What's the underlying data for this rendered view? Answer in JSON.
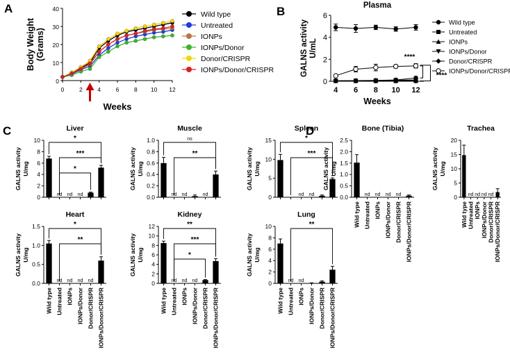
{
  "figure": {
    "colors": {
      "black": "#000000",
      "arrow": "#c40000"
    }
  },
  "chart_data": [
    {
      "id": "A",
      "type": "line",
      "panel_label": "A",
      "xlabel": "Weeks",
      "ylabel": "Body Weight (Grams)",
      "title": "",
      "xlim": [
        0,
        12
      ],
      "ylim": [
        0,
        40
      ],
      "x": [
        0,
        1,
        2,
        3,
        4,
        5,
        6,
        7,
        8,
        9,
        10,
        11,
        12
      ],
      "x_ticks": [
        0,
        2,
        4,
        6,
        8,
        10,
        12
      ],
      "y_ticks": [
        0,
        10,
        20,
        30,
        40
      ],
      "annotations": [
        {
          "type": "arrow",
          "color": "#c40000",
          "at_x": 3
        }
      ],
      "legend": "right",
      "series": [
        {
          "name": "Wild type",
          "color": "#000000",
          "values": [
            2,
            4,
            7,
            10,
            18,
            22,
            25,
            27,
            28,
            29,
            30,
            31,
            32
          ]
        },
        {
          "name": "Untreated",
          "color": "#1f3be0",
          "values": [
            2,
            3.5,
            6,
            8,
            14,
            18,
            21,
            23,
            24.5,
            25.5,
            26.5,
            27,
            28
          ]
        },
        {
          "name": "IONPs",
          "color": "#b07a48",
          "values": [
            2,
            4,
            6.5,
            9,
            16,
            20,
            23,
            25,
            26,
            27,
            28,
            28.5,
            29
          ]
        },
        {
          "name": "IONPs/Donor",
          "color": "#3cb52e",
          "values": [
            2,
            3,
            5,
            6.5,
            13,
            16,
            19,
            21,
            22,
            23,
            24,
            24.5,
            25
          ]
        },
        {
          "name": "Donor/CRISPR",
          "color": "#f2d50f",
          "values": [
            2,
            4.5,
            7.5,
            11,
            19,
            23,
            26,
            27.5,
            29,
            30,
            31,
            32,
            33
          ]
        },
        {
          "name": "IONPs/Donor/CRISPR",
          "color": "#e01f1f",
          "values": [
            2,
            4,
            6.5,
            9.5,
            16,
            20,
            23,
            25,
            26,
            27.5,
            28.5,
            29,
            30
          ]
        }
      ]
    },
    {
      "id": "B",
      "type": "line",
      "panel_label": "B",
      "title": "Plasma",
      "xlabel": "Weeks",
      "ylabel": "GALNS activity U/mL",
      "xlim": [
        3.5,
        12.8
      ],
      "ylim": [
        0,
        6
      ],
      "x": [
        4,
        6,
        8,
        10,
        12
      ],
      "x_ticks": [
        4,
        6,
        8,
        10,
        12
      ],
      "y_ticks": [
        0,
        2,
        4,
        6
      ],
      "legend": "right",
      "series": [
        {
          "name": "Wild type",
          "marker": "circle",
          "fill": "#000000",
          "values": [
            4.9,
            4.8,
            4.9,
            4.75,
            4.9
          ],
          "errors": [
            0.3,
            0.35,
            0.2,
            0.2,
            0.25
          ]
        },
        {
          "name": "Untreated",
          "marker": "square",
          "fill": "#000000",
          "values": [
            0.03,
            0.03,
            0.03,
            0.03,
            0.03
          ],
          "errors": [
            0,
            0,
            0,
            0,
            0
          ]
        },
        {
          "name": "IONPs",
          "marker": "triangle-up",
          "fill": "#000000",
          "values": [
            0.04,
            0.04,
            0.05,
            0.05,
            0.06
          ],
          "errors": [
            0,
            0,
            0,
            0,
            0
          ]
        },
        {
          "name": "IONPs/Donor",
          "marker": "triangle-down",
          "fill": "#000000",
          "values": [
            0.05,
            0.05,
            0.06,
            0.1,
            0.12
          ],
          "errors": [
            0,
            0,
            0,
            0.05,
            0.05
          ]
        },
        {
          "name": "Donor/CRISPR",
          "marker": "diamond",
          "fill": "#000000",
          "values": [
            0.05,
            0.06,
            0.08,
            0.12,
            0.3
          ],
          "errors": [
            0,
            0,
            0,
            0.05,
            0.15
          ]
        },
        {
          "name": "IONPs/Donor/CRISPR",
          "marker": "circle-open",
          "fill": "#ffffff",
          "values": [
            0.5,
            1.1,
            1.25,
            1.35,
            1.4
          ],
          "errors": [
            0.05,
            0.25,
            0.3,
            0.15,
            0.2
          ]
        }
      ],
      "significance": [
        {
          "label": "****",
          "from_series": "IONPs/Donor/CRISPR",
          "to_series": "Donor/CRISPR"
        },
        {
          "label": "****",
          "from_series": "IONPs/Donor/CRISPR",
          "to_series": "Untreated"
        }
      ]
    },
    {
      "id": "C-liver",
      "type": "bar",
      "panel_label": "C",
      "title": "Liver",
      "ylabel": "GALNS activity U/mg",
      "categories": [
        "Wild type",
        "Untreated",
        "IONPs",
        "IONPs/Donor",
        "Donor/CRISPR",
        "IONPs/Donor/CRISPR"
      ],
      "values": [
        6.8,
        0,
        0,
        0,
        0.8,
        5.2
      ],
      "errors": [
        0.4,
        0,
        0,
        0,
        0.1,
        0.4
      ],
      "bar_labels": [
        "",
        "nd",
        "nd",
        "nd",
        "",
        ""
      ],
      "ylim": [
        0,
        10
      ],
      "y_ticks": [
        0,
        2,
        4,
        6,
        8,
        10
      ],
      "y_tick_labels": [
        "0",
        "2",
        "4",
        "6",
        "8",
        "10"
      ],
      "significance": [
        {
          "label": "*",
          "from": 0,
          "to": 5
        },
        {
          "label": "***",
          "from": 1,
          "to": 5
        },
        {
          "label": "*",
          "from": 1,
          "to": 4
        }
      ]
    },
    {
      "id": "C-muscle",
      "type": "bar",
      "title": "Muscle",
      "ylabel": "GALNS activity U/mg",
      "categories": [
        "Wild type",
        "Untreated",
        "IONPs",
        "IONPs/Donor",
        "Donor/CRISPR",
        "IONPs/Donor/CRISPR"
      ],
      "values": [
        0.6,
        0,
        0,
        0.02,
        0,
        0.4
      ],
      "errors": [
        0.1,
        0,
        0,
        0.02,
        0,
        0.06
      ],
      "bar_labels": [
        "",
        "nd",
        "nd",
        "",
        "nd",
        ""
      ],
      "ylim": [
        0,
        1.0
      ],
      "y_ticks": [
        0,
        0.2,
        0.4,
        0.6,
        0.8,
        1.0
      ],
      "y_tick_labels": [
        "0.0",
        "0.2",
        "0.4",
        "0.6",
        "0.8",
        "1.0"
      ],
      "significance": [
        {
          "label": "ns",
          "from": 0,
          "to": 5
        },
        {
          "label": "**",
          "from": 1,
          "to": 5
        }
      ]
    },
    {
      "id": "C-spleen",
      "type": "bar",
      "title": "Spleen",
      "ylabel": "GALNS activity U/mg",
      "categories": [
        "Wild type",
        "Untreated",
        "IONPs",
        "IONPs/Donor",
        "Donor/CRISPR",
        "IONPs/Donor/CRISPR"
      ],
      "values": [
        9.8,
        0,
        0,
        0,
        0.4,
        4.8
      ],
      "errors": [
        1.5,
        0,
        0,
        0,
        0.2,
        0.3
      ],
      "bar_labels": [
        "",
        "",
        "nd",
        "nd",
        "",
        ""
      ],
      "ylim": [
        0,
        15
      ],
      "y_ticks": [
        0,
        5,
        10,
        15
      ],
      "y_tick_labels": [
        "0",
        "5",
        "10",
        "15"
      ],
      "significance": [
        {
          "label": "*",
          "from": 0,
          "to": 5
        },
        {
          "label": "***",
          "from": 1,
          "to": 5
        }
      ]
    },
    {
      "id": "C-heart",
      "type": "bar",
      "title": "Heart",
      "ylabel": "GALNS activity U/mg",
      "categories": [
        "Wild type",
        "Untreated",
        "IONPs",
        "IONPs/Donor",
        "Donor/CRISPR",
        "IONPs/Donor/CRISPR"
      ],
      "values": [
        1.05,
        0,
        0,
        0,
        0,
        0.6
      ],
      "errors": [
        0.08,
        0,
        0,
        0,
        0,
        0.1
      ],
      "bar_labels": [
        "",
        "nd",
        "nd",
        "nd",
        "nd",
        ""
      ],
      "ylim": [
        0,
        1.5
      ],
      "y_ticks": [
        0,
        0.5,
        1.0,
        1.5
      ],
      "y_tick_labels": [
        "0.0",
        "0.5",
        "1.0",
        "1.5"
      ],
      "significance": [
        {
          "label": "*",
          "from": 0,
          "to": 5
        },
        {
          "label": "**",
          "from": 1,
          "to": 5
        }
      ]
    },
    {
      "id": "C-kidney",
      "type": "bar",
      "title": "Kidney",
      "ylabel": "GALNS activity U/mg",
      "categories": [
        "Wild type",
        "Untreated",
        "IONPs",
        "IONPs/Donor",
        "Donor/CRISPR",
        "IONPs/Donor/CRISPR"
      ],
      "values": [
        8.5,
        0,
        0,
        0,
        0.7,
        4.7
      ],
      "errors": [
        0.4,
        0,
        0,
        0,
        0.1,
        0.5
      ],
      "bar_labels": [
        "",
        "nd",
        "nd",
        "nd",
        "",
        ""
      ],
      "ylim": [
        0,
        12
      ],
      "y_ticks": [
        0,
        2,
        4,
        6,
        8,
        10,
        12
      ],
      "y_tick_labels": [
        "0",
        "2",
        "4",
        "6",
        "8",
        "10",
        "12"
      ],
      "significance": [
        {
          "label": "**",
          "from": 0,
          "to": 5
        },
        {
          "label": "***",
          "from": 1,
          "to": 5
        },
        {
          "label": "*",
          "from": 1,
          "to": 4
        }
      ]
    },
    {
      "id": "C-lung",
      "type": "bar",
      "title": "Lung",
      "ylabel": "GALNS activity U/mg",
      "categories": [
        "Wild type",
        "Untreated",
        "IONPs",
        "IONPs/Donor",
        "Donor/CRISPR",
        "IONPs/Donor/CRISPR"
      ],
      "values": [
        7.0,
        0,
        0,
        0.05,
        0.3,
        2.4
      ],
      "errors": [
        0.8,
        0,
        0,
        0.05,
        0.15,
        0.6
      ],
      "bar_labels": [
        "",
        "nd",
        "nd",
        "",
        "",
        ""
      ],
      "ylim": [
        0,
        10
      ],
      "y_ticks": [
        0,
        2,
        4,
        6,
        8,
        10
      ],
      "y_tick_labels": [
        "0",
        "2",
        "4",
        "6",
        "8",
        "10"
      ],
      "significance": [
        {
          "label": "**",
          "from": 1,
          "to": 5
        }
      ]
    },
    {
      "id": "D-bone",
      "type": "bar",
      "panel_label": "D",
      "title": "Bone (Tibia)",
      "ylabel": "GALNS activity U/mg",
      "categories": [
        "Wild type",
        "Untreated",
        "IONPs",
        "IONPs/Donor",
        "Donor/CRISPR",
        "IONPs/Donor/CRISPR"
      ],
      "values": [
        1.52,
        0,
        0,
        0,
        0,
        0.07
      ],
      "errors": [
        0.35,
        0,
        0,
        0,
        0,
        0.03
      ],
      "bar_labels": [
        "",
        "nd",
        "nd",
        "nd",
        "nd",
        ""
      ],
      "ylim": [
        0,
        2.5
      ],
      "y_ticks": [
        0,
        0.5,
        1.0,
        1.5,
        2.0,
        2.5
      ],
      "y_tick_labels": [
        "0.0",
        "0.5",
        "1.0",
        "1.5",
        "2.0",
        "2.5"
      ],
      "significance": []
    },
    {
      "id": "D-trachea",
      "type": "bar",
      "title": "Trachea",
      "ylabel": "GALNS activity U/mg",
      "categories": [
        "Wild type",
        "Untreated",
        "IONPs",
        "IONPs/Donor",
        "Donor/CRISPR",
        "IONPs/Donor/CRISPR"
      ],
      "values": [
        14.8,
        0,
        0,
        0,
        0,
        1.8
      ],
      "errors": [
        3.5,
        0,
        0,
        0,
        0,
        1.2
      ],
      "bar_labels": [
        "",
        "nd",
        "nd",
        "nd",
        "nd",
        ""
      ],
      "ylim": [
        0,
        20
      ],
      "y_ticks": [
        0,
        5,
        10,
        15,
        20
      ],
      "y_tick_labels": [
        "0",
        "5",
        "10",
        "15",
        "20"
      ],
      "significance": []
    }
  ]
}
